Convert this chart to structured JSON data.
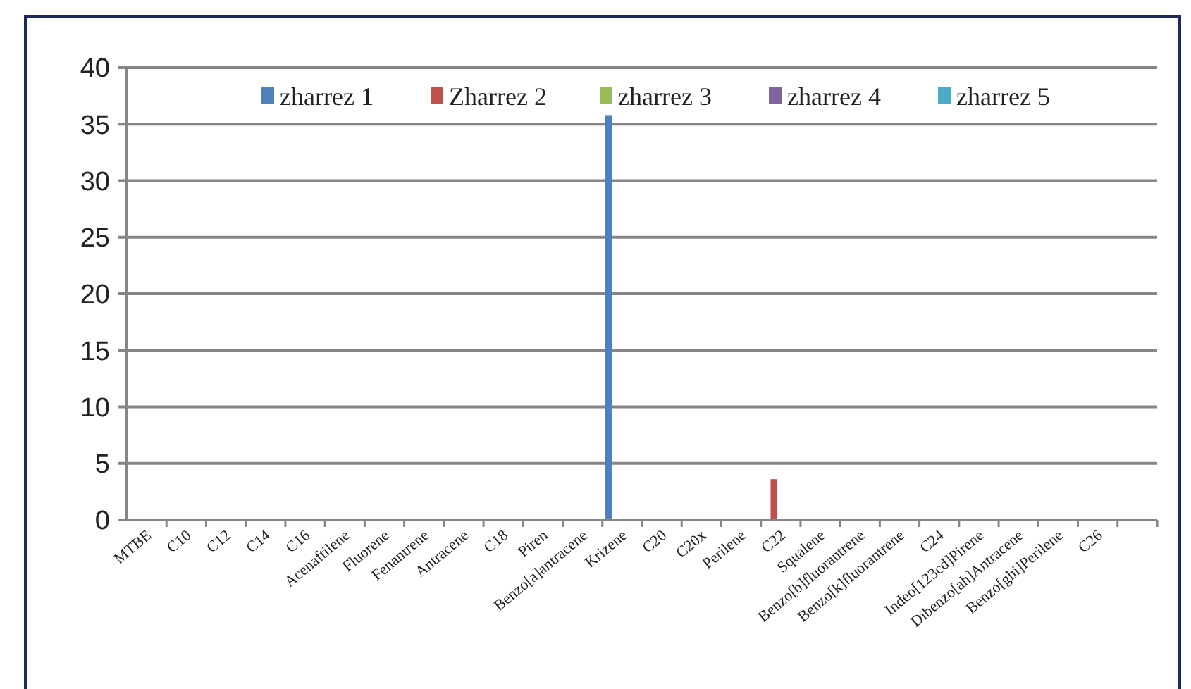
{
  "chart_data": {
    "type": "bar",
    "categories": [
      "MTBE",
      "C10",
      "C12",
      "C14",
      "C16",
      "Acenaftilene",
      "Fluorene",
      "Fenantrene",
      "Antracene",
      "C18",
      "Piren",
      "Benzo[a]antracene",
      "Krizene",
      "C20",
      "C20x",
      "Perilene",
      "C22",
      "Squalene",
      "Benzo[b]fluorantrene",
      "Benzo[k]fluorantrene",
      "C24",
      "Indeo[123cd]Pirene",
      "Dibenzo[ah]Antracene",
      "Benzo[ghi]Perilene",
      "C26",
      null
    ],
    "series": [
      {
        "name": "zharrez 1",
        "color": "#4f81bd",
        "values": [
          0,
          0,
          0,
          0,
          0,
          0,
          0,
          0,
          0,
          0,
          0,
          0,
          35.8,
          0,
          0,
          0,
          0,
          0,
          0,
          0,
          0,
          0,
          0,
          0,
          0,
          0
        ]
      },
      {
        "name": "Zharrez 2",
        "color": "#c0504d",
        "values": [
          0,
          0,
          0,
          0,
          0,
          0,
          0,
          0,
          0,
          0,
          0,
          0,
          0,
          0,
          0,
          0,
          3.6,
          0,
          0,
          0,
          0,
          0,
          0,
          0,
          0,
          0
        ]
      },
      {
        "name": "zharrez 3",
        "color": "#9bbb59",
        "values": [
          0,
          0,
          0,
          0,
          0,
          0,
          0,
          0,
          0,
          0,
          0,
          0,
          0,
          0,
          0,
          0,
          0,
          0,
          0,
          0,
          0,
          0,
          0,
          0,
          0,
          0
        ]
      },
      {
        "name": "zharrez 4",
        "color": "#8064a2",
        "values": [
          0,
          0,
          0,
          0,
          0,
          0,
          0,
          0,
          0,
          0,
          0,
          0,
          0,
          0,
          0,
          0,
          0,
          0,
          0,
          0,
          0,
          0,
          0,
          0,
          0,
          0
        ]
      },
      {
        "name": "zharrez 5",
        "color": "#4bacc6",
        "values": [
          0,
          0,
          0,
          0,
          0,
          0,
          0,
          0,
          0,
          0,
          0,
          0,
          0,
          0,
          0,
          0,
          0,
          0,
          0,
          0,
          0,
          0,
          0,
          0,
          0,
          0
        ]
      }
    ],
    "ylim": [
      0,
      40
    ],
    "yticks": [
      0,
      5,
      10,
      15,
      20,
      25,
      30,
      35,
      40
    ],
    "grid": "y",
    "legend": "top"
  }
}
